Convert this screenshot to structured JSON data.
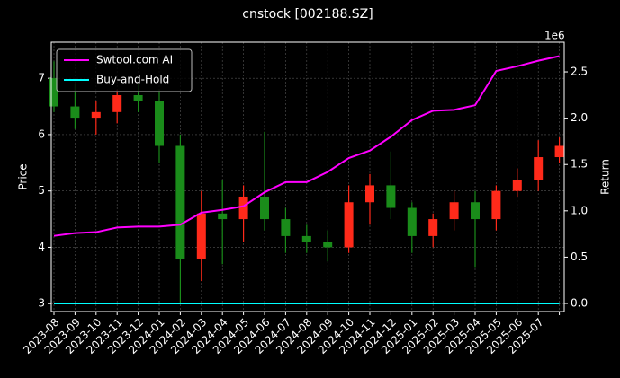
{
  "chart_data": {
    "type": "candlestick",
    "title": "cnstock [002188.SZ]",
    "ylabel": "Price",
    "y2label": "Return",
    "y2_offset_label": "1e6",
    "x": [
      "2023-08",
      "2023-09",
      "2023-10",
      "2023-11",
      "2023-12",
      "2024-01",
      "2024-02",
      "2024-03",
      "2024-04",
      "2024-05",
      "2024-06",
      "2024-07",
      "2024-08",
      "2024-09",
      "2024-10",
      "2024-11",
      "2024-12",
      "2025-01",
      "2025-02",
      "2025-03",
      "2025-04",
      "2025-05",
      "2025-06",
      "2025-07",
      null
    ],
    "open": [
      7.0,
      6.5,
      6.3,
      6.4,
      6.7,
      6.6,
      5.8,
      3.8,
      4.6,
      4.5,
      4.9,
      4.5,
      4.2,
      4.1,
      4.0,
      4.8,
      5.1,
      4.7,
      4.2,
      4.5,
      4.8,
      4.5,
      5.0,
      5.2,
      5.6
    ],
    "high": [
      7.3,
      6.9,
      6.6,
      6.8,
      6.9,
      6.8,
      6.0,
      5.0,
      5.2,
      5.1,
      6.05,
      4.7,
      4.4,
      4.3,
      5.1,
      5.3,
      5.7,
      4.8,
      4.6,
      5.0,
      5.0,
      5.1,
      5.4,
      5.9,
      5.95
    ],
    "low": [
      6.4,
      6.1,
      6.0,
      6.2,
      6.4,
      5.5,
      3.0,
      3.4,
      3.7,
      4.1,
      4.3,
      3.9,
      3.9,
      3.75,
      3.9,
      4.4,
      4.5,
      3.9,
      4.0,
      4.3,
      3.65,
      4.3,
      4.9,
      5.0,
      5.5
    ],
    "close": [
      6.5,
      6.3,
      6.4,
      6.7,
      6.6,
      5.8,
      3.8,
      4.6,
      4.5,
      4.9,
      4.5,
      4.2,
      4.1,
      4.0,
      4.8,
      5.1,
      4.7,
      4.2,
      4.5,
      4.8,
      4.5,
      5.0,
      5.2,
      5.6,
      5.8
    ],
    "up_color": "#ff2a1a",
    "down_color": "#1a8c1a",
    "series": [
      {
        "name": "Swtool.com AI",
        "color": "#ff00ff",
        "axis": "y2",
        "values": [
          730000,
          760000,
          770000,
          820000,
          830000,
          830000,
          850000,
          980000,
          1010000,
          1050000,
          1200000,
          1310000,
          1310000,
          1420000,
          1570000,
          1650000,
          1800000,
          1980000,
          2080000,
          2090000,
          2140000,
          2510000,
          2560000,
          2620000,
          2670000
        ]
      },
      {
        "name": "Buy-and-Hold",
        "color": "#00ffff",
        "axis": "y2",
        "values": [
          0,
          0,
          0,
          0,
          0,
          0,
          0,
          0,
          0,
          0,
          0,
          0,
          0,
          0,
          0,
          0,
          0,
          0,
          0,
          0,
          0,
          0,
          0,
          0,
          0
        ]
      }
    ],
    "ylim": [
      2.86,
      7.64
    ],
    "yticks": [
      3,
      4,
      5,
      6,
      7
    ],
    "y2lim": [
      -87000,
      2820000
    ],
    "y2ticks": [
      {
        "value": 0,
        "label": "0.0"
      },
      {
        "value": 500000,
        "label": "0.5"
      },
      {
        "value": 1000000,
        "label": "1.0"
      },
      {
        "value": 1500000,
        "label": "1.5"
      },
      {
        "value": 2000000,
        "label": "2.0"
      },
      {
        "value": 2500000,
        "label": "2.5"
      }
    ],
    "grid": true,
    "legend": "upper left"
  }
}
